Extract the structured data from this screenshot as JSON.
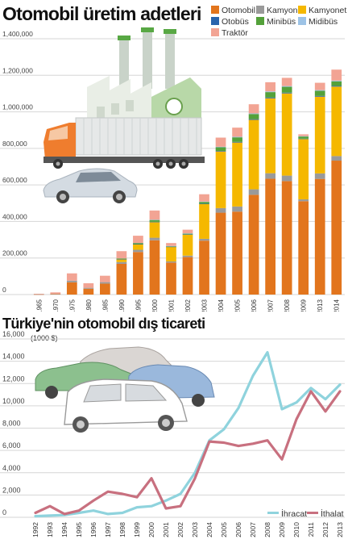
{
  "chart_data": [
    {
      "type": "bar",
      "stacked": true,
      "title": "Otomobil üretim adetleri",
      "categories": [
        "1965",
        "1970",
        "1975",
        "1980",
        "1985",
        "1990",
        "1995",
        "2000",
        "2001",
        "2002",
        "2003",
        "2004",
        "2005",
        "2006",
        "2007",
        "2008",
        "2009",
        "2013",
        "2014"
      ],
      "ylim": [
        0,
        1400000
      ],
      "yticks": [
        0,
        200000,
        400000,
        600000,
        800000,
        1000000,
        1200000,
        1400000
      ],
      "ytick_labels": [
        "0",
        "200,000",
        "400,000",
        "600,000",
        "800,000",
        "1,000,000",
        "1,200,000",
        "1,400,000"
      ],
      "series": [
        {
          "name": "Otomobil",
          "color": "#e2751d",
          "values": [
            1000,
            3000,
            67000,
            32000,
            60000,
            168000,
            233000,
            297000,
            175000,
            205000,
            295000,
            448000,
            454000,
            546000,
            634000,
            621000,
            511000,
            633000,
            733000
          ]
        },
        {
          "name": "Kamyon",
          "color": "#9a9a9a",
          "values": [
            500,
            1000,
            9000,
            5000,
            8000,
            10000,
            12000,
            14000,
            6000,
            8000,
            10000,
            25000,
            28000,
            30000,
            30000,
            30000,
            10000,
            30000,
            25000
          ]
        },
        {
          "name": "Kamyonet",
          "color": "#f5b800",
          "values": [
            0,
            0,
            0,
            0,
            0,
            15000,
            30000,
            85000,
            80000,
            115000,
            190000,
            310000,
            350000,
            380000,
            410000,
            450000,
            330000,
            420000,
            380000
          ]
        },
        {
          "name": "Otobüs",
          "color": "#2a64ad",
          "values": [
            0,
            0,
            0,
            0,
            0,
            500,
            1000,
            2000,
            1000,
            1500,
            2000,
            3000,
            3500,
            4000,
            4000,
            4000,
            2000,
            4000,
            4000
          ]
        },
        {
          "name": "Minibüs",
          "color": "#54a13a",
          "values": [
            0,
            0,
            0,
            0,
            0,
            4000,
            6000,
            10000,
            3000,
            4000,
            10000,
            20000,
            25000,
            28000,
            30000,
            32000,
            12000,
            28000,
            25000
          ]
        },
        {
          "name": "Midibüs",
          "color": "#9dc3e6",
          "values": [
            0,
            0,
            0,
            0,
            0,
            0,
            0,
            2000,
            1000,
            1500,
            2000,
            3000,
            3000,
            3500,
            4000,
            4000,
            2000,
            4000,
            4000
          ]
        },
        {
          "name": "Traktör",
          "color": "#f2a494",
          "values": [
            3000,
            8000,
            40000,
            25000,
            35000,
            40000,
            40000,
            50000,
            16000,
            20000,
            40000,
            50000,
            50000,
            50000,
            50000,
            45000,
            10000,
            40000,
            60000
          ]
        }
      ]
    },
    {
      "type": "line",
      "title": "Türkiye'nin otomobil dış ticareti",
      "unit": "(1000 $)",
      "x": [
        "1992",
        "1993",
        "1994",
        "1995",
        "1996",
        "1997",
        "1998",
        "1999",
        "2000",
        "2001",
        "2002",
        "2003",
        "2004",
        "2005",
        "2006",
        "2007",
        "2008",
        "2009",
        "2010",
        "2011",
        "2012",
        "2013"
      ],
      "ylim": [
        0,
        16000
      ],
      "yticks": [
        0,
        2000,
        4000,
        6000,
        8000,
        10000,
        12000,
        14000,
        16000
      ],
      "ytick_labels": [
        "0",
        "2,000",
        "4,000",
        "6,000",
        "8,000",
        "10,000",
        "12,000",
        "14,000",
        "16,000"
      ],
      "series": [
        {
          "name": "İhracat",
          "color": "#8fd3dd",
          "values": [
            100,
            150,
            200,
            400,
            600,
            300,
            400,
            900,
            1000,
            1500,
            2100,
            4000,
            6900,
            7900,
            9800,
            12700,
            14800,
            9700,
            10300,
            11600,
            10600,
            11900
          ]
        },
        {
          "name": "İthalat",
          "color": "#c8707f",
          "values": [
            400,
            1000,
            300,
            600,
            1500,
            2300,
            2100,
            1800,
            3500,
            800,
            1000,
            3500,
            6800,
            6700,
            6400,
            6600,
            6900,
            5200,
            8800,
            11300,
            9500,
            11300
          ]
        }
      ]
    }
  ],
  "colors": {
    "ihracat_line": "#8fd3dd",
    "ithalat_line": "#c8707f"
  },
  "illustrations": [
    "factory-icon",
    "truck-icon",
    "car-icon",
    "cars-group-icon"
  ]
}
